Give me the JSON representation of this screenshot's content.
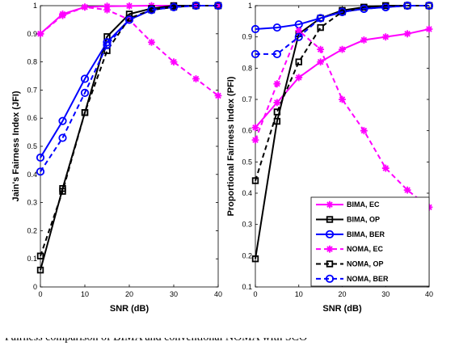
{
  "colors": {
    "magenta": "#ff00ff",
    "black": "#000000",
    "blue": "#0000ff"
  },
  "caption_fragment": "Fairness comparison of BIMA and conventional NOMA with SCO",
  "chart_data": [
    {
      "type": "line",
      "xlabel": "SNR (dB)",
      "ylabel": "Jain's Fairness Index (JFI)",
      "xlim": [
        0,
        40
      ],
      "ylim": [
        0,
        1
      ],
      "xticks": [
        0,
        10,
        20,
        30,
        40
      ],
      "yticks": [
        0,
        0.1,
        0.2,
        0.3,
        0.4,
        0.5,
        0.6,
        0.7,
        0.8,
        0.9,
        1
      ],
      "xtick_labels": [
        "0",
        "10",
        "20",
        "30",
        "40"
      ],
      "ytick_labels": [
        "0",
        "0.1",
        "0.2",
        "0.3",
        "0.4",
        "0.5",
        "0.6",
        "0.7",
        "0.8",
        "0.9",
        "1"
      ],
      "x": [
        0,
        5,
        10,
        15,
        20,
        25,
        30,
        35,
        40
      ],
      "grid": false,
      "legend": null,
      "series": [
        {
          "name": "BIMA, EC",
          "color": "#ff00ff",
          "dash": "solid",
          "marker": "star",
          "values": [
            0.9,
            0.97,
            0.995,
            0.998,
            0.999,
            1.0,
            1.0,
            1.0,
            1.0
          ]
        },
        {
          "name": "BIMA, OP",
          "color": "#000000",
          "dash": "solid",
          "marker": "square",
          "values": [
            0.06,
            0.35,
            0.62,
            0.89,
            0.97,
            0.99,
            1.0,
            1.0,
            1.0
          ]
        },
        {
          "name": "BIMA, BER",
          "color": "#0000ff",
          "dash": "solid",
          "marker": "circle",
          "values": [
            0.46,
            0.59,
            0.74,
            0.87,
            0.95,
            0.985,
            0.995,
            1.0,
            1.0
          ]
        },
        {
          "name": "NOMA, EC",
          "color": "#ff00ff",
          "dash": "dashed",
          "marker": "star",
          "values": [
            0.9,
            0.965,
            0.995,
            0.985,
            0.95,
            0.87,
            0.8,
            0.74,
            0.68
          ]
        },
        {
          "name": "NOMA, OP",
          "color": "#000000",
          "dash": "dashed",
          "marker": "square",
          "values": [
            0.11,
            0.34,
            0.62,
            0.84,
            0.955,
            0.985,
            0.995,
            1.0,
            1.0
          ]
        },
        {
          "name": "NOMA, BER",
          "color": "#0000ff",
          "dash": "dashed",
          "marker": "circle",
          "values": [
            0.41,
            0.53,
            0.69,
            0.86,
            0.95,
            0.985,
            0.995,
            1.0,
            1.0
          ]
        }
      ]
    },
    {
      "type": "line",
      "xlabel": "SNR (dB)",
      "ylabel": "Proportional Fairness Index (PFI)",
      "xlim": [
        0,
        40
      ],
      "ylim": [
        0.1,
        1
      ],
      "xticks": [
        0,
        10,
        20,
        30,
        40
      ],
      "yticks": [
        0.1,
        0.2,
        0.3,
        0.4,
        0.5,
        0.6,
        0.7,
        0.8,
        0.9,
        1
      ],
      "xtick_labels": [
        "0",
        "10",
        "20",
        "30",
        "40"
      ],
      "ytick_labels": [
        "0.1",
        "0.2",
        "0.3",
        "0.4",
        "0.5",
        "0.6",
        "0.7",
        "0.8",
        "0.9",
        "1"
      ],
      "x": [
        0,
        5,
        10,
        15,
        20,
        25,
        30,
        35,
        40
      ],
      "grid": false,
      "legend": "lower-right",
      "series": [
        {
          "name": "BIMA, EC",
          "color": "#ff00ff",
          "dash": "solid",
          "marker": "star",
          "values": [
            0.61,
            0.69,
            0.77,
            0.82,
            0.86,
            0.89,
            0.9,
            0.91,
            0.925
          ]
        },
        {
          "name": "BIMA, OP",
          "color": "#000000",
          "dash": "solid",
          "marker": "square",
          "values": [
            0.19,
            0.63,
            0.91,
            0.96,
            0.985,
            0.995,
            1.0,
            1.0,
            1.0
          ]
        },
        {
          "name": "BIMA, BER",
          "color": "#0000ff",
          "dash": "solid",
          "marker": "circle",
          "values": [
            0.925,
            0.93,
            0.94,
            0.96,
            0.98,
            0.99,
            0.995,
            1.0,
            1.0
          ]
        },
        {
          "name": "NOMA, EC",
          "color": "#ff00ff",
          "dash": "dashed",
          "marker": "star",
          "values": [
            0.57,
            0.75,
            0.92,
            0.86,
            0.7,
            0.6,
            0.48,
            0.41,
            0.355
          ]
        },
        {
          "name": "NOMA, OP",
          "color": "#000000",
          "dash": "dashed",
          "marker": "square",
          "values": [
            0.44,
            0.66,
            0.82,
            0.93,
            0.98,
            0.995,
            1.0,
            1.0,
            1.0
          ]
        },
        {
          "name": "NOMA, BER",
          "color": "#0000ff",
          "dash": "dashed",
          "marker": "circle",
          "values": [
            0.845,
            0.845,
            0.9,
            0.96,
            0.98,
            0.99,
            0.995,
            1.0,
            1.0
          ]
        }
      ]
    }
  ]
}
